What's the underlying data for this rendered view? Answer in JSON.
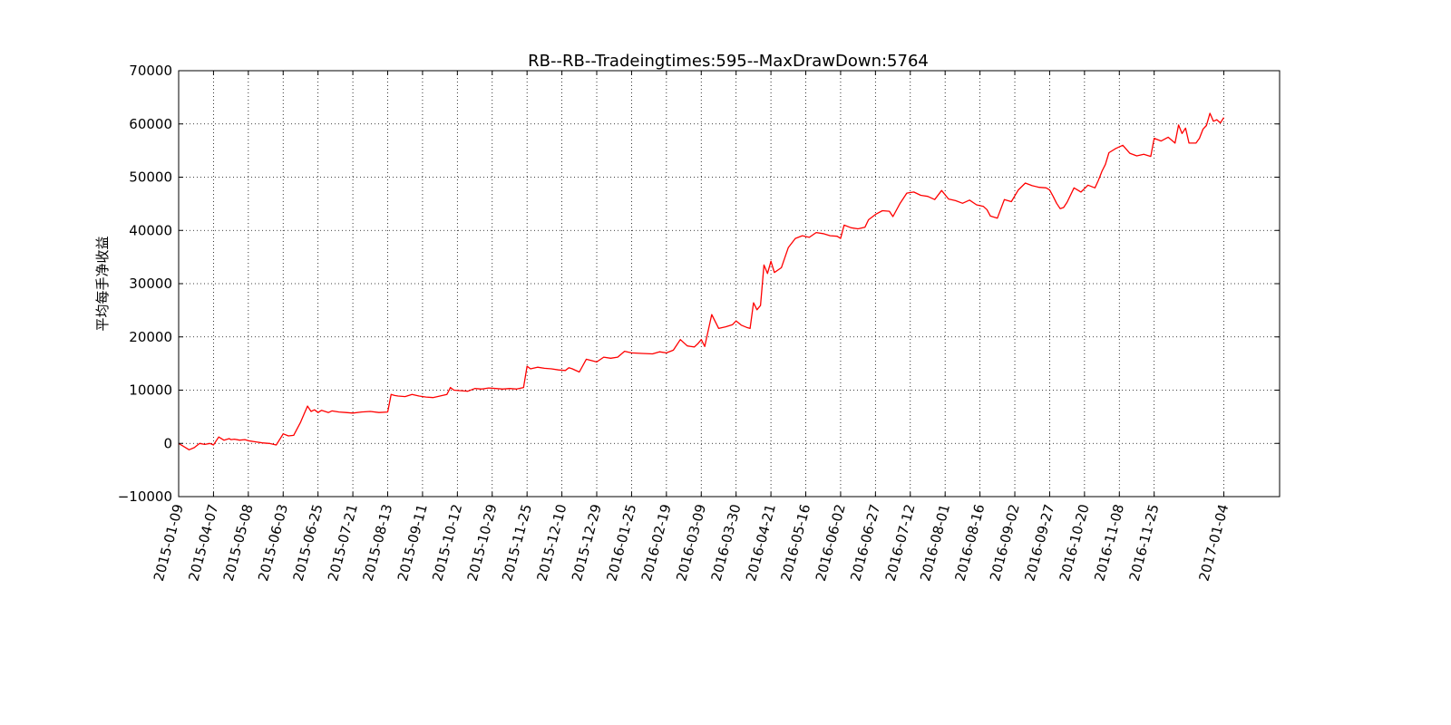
{
  "chart_data": {
    "type": "line",
    "title": "RB--RB--Tradeingtimes:595--MaxDrawDown:5764",
    "xlabel": "",
    "ylabel": "平均每手净收益",
    "ylim": [
      -10000,
      70000
    ],
    "yticks": [
      -10000,
      0,
      10000,
      20000,
      30000,
      40000,
      50000,
      60000,
      70000
    ],
    "ytick_labels": [
      "−10000",
      "0",
      "10000",
      "20000",
      "30000",
      "40000",
      "50000",
      "60000",
      "70000"
    ],
    "xtick_labels": [
      "2015-01-09",
      "2015-04-07",
      "2015-05-08",
      "2015-06-03",
      "2015-06-25",
      "2015-07-21",
      "2015-08-13",
      "2015-09-11",
      "2015-10-12",
      "2015-10-29",
      "2015-11-25",
      "2015-12-10",
      "2015-12-29",
      "2016-01-25",
      "2016-02-19",
      "2016-03-09",
      "2016-03-30",
      "2016-04-21",
      "2016-05-16",
      "2016-06-02",
      "2016-06-27",
      "2016-07-12",
      "2016-08-01",
      "2016-08-16",
      "2016-09-02",
      "2016-09-27",
      "2016-10-20",
      "2016-11-08",
      "2016-11-25",
      "2017-01-04"
    ],
    "xtick_positions": [
      0,
      20,
      40,
      60,
      80,
      100,
      120,
      140,
      160,
      180,
      200,
      220,
      240,
      260,
      280,
      300,
      320,
      340,
      360,
      380,
      400,
      420,
      440,
      460,
      480,
      500,
      520,
      540,
      560,
      600
    ],
    "xlim": [
      0,
      632
    ],
    "grid": true,
    "series": [
      {
        "color": "#ff0000",
        "x": [
          0,
          3,
          6,
          9,
          12,
          15,
          18,
          20,
          23,
          26,
          29,
          30,
          32,
          35,
          38,
          40,
          44,
          48,
          52,
          56,
          60,
          63,
          66,
          70,
          72,
          74,
          76,
          78,
          80,
          82,
          84,
          86,
          88,
          92,
          96,
          100,
          105,
          110,
          115,
          120,
          122,
          124,
          126,
          130,
          134,
          138,
          142,
          146,
          150,
          154,
          156,
          158,
          162,
          166,
          170,
          174,
          178,
          182,
          186,
          190,
          194,
          198,
          200,
          202,
          206,
          210,
          214,
          218,
          222,
          224,
          226,
          230,
          234,
          240,
          244,
          248,
          252,
          256,
          260,
          266,
          272,
          276,
          280,
          284,
          288,
          292,
          296,
          298,
          300,
          302,
          306,
          310,
          314,
          318,
          320,
          323,
          326,
          328,
          330,
          332,
          334,
          336,
          338,
          340,
          342,
          346,
          350,
          354,
          358,
          362,
          366,
          370,
          374,
          378,
          380,
          382,
          386,
          390,
          394,
          396,
          400,
          404,
          408,
          410,
          414,
          418,
          422,
          426,
          430,
          434,
          438,
          442,
          446,
          450,
          454,
          458,
          462,
          464,
          466,
          470,
          474,
          478,
          482,
          486,
          490,
          494,
          498,
          500,
          502,
          504,
          506,
          508,
          510,
          514,
          518,
          522,
          526,
          528,
          530,
          532,
          534,
          538,
          542,
          546,
          550,
          554,
          558,
          560,
          564,
          568,
          572,
          574,
          576,
          578,
          580,
          584,
          586,
          588,
          590,
          592,
          594,
          596,
          598,
          600
        ],
        "y": [
          0,
          -600,
          -1200,
          -800,
          0,
          -200,
          0,
          -300,
          1200,
          600,
          900,
          700,
          800,
          600,
          700,
          500,
          300,
          100,
          0,
          -300,
          1800,
          1400,
          1500,
          4000,
          5500,
          7000,
          6000,
          6300,
          5800,
          6200,
          6000,
          5800,
          6100,
          5900,
          5800,
          5700,
          5900,
          6000,
          5800,
          5900,
          9200,
          9000,
          8900,
          8800,
          9200,
          8900,
          8700,
          8600,
          8900,
          9200,
          10500,
          10000,
          9900,
          9800,
          10300,
          10200,
          10400,
          10300,
          10200,
          10300,
          10200,
          10500,
          14500,
          14000,
          14300,
          14100,
          14000,
          13800,
          13700,
          14200,
          14000,
          13400,
          15800,
          15300,
          16200,
          16000,
          16200,
          17300,
          17000,
          16900,
          16800,
          17200,
          17000,
          17500,
          19500,
          18300,
          18100,
          18700,
          19500,
          18200,
          24200,
          21600,
          21900,
          22300,
          23000,
          22200,
          21800,
          21600,
          26400,
          25100,
          25900,
          33500,
          31900,
          34200,
          32100,
          33000,
          36800,
          38500,
          39000,
          38700,
          39600,
          39400,
          39000,
          38900,
          38500,
          41000,
          40500,
          40300,
          40600,
          42000,
          43000,
          43700,
          43600,
          42600,
          45000,
          47000,
          47200,
          46600,
          46400,
          45800,
          47500,
          45900,
          45600,
          45100,
          45700,
          44800,
          44500,
          43900,
          42700,
          42300,
          45800,
          45400,
          47600,
          48900,
          48400,
          48100,
          48000,
          47600,
          46400,
          45100,
          44100,
          44300,
          45300,
          48000,
          47200,
          48500,
          48000,
          49400,
          51100,
          52400,
          54600,
          55400,
          56000,
          54500,
          54000,
          54300,
          53900,
          57300,
          56800,
          57500,
          56400,
          59800,
          58200,
          59200,
          56400,
          56400,
          57300,
          59000,
          59700,
          62000,
          60500,
          60800,
          60200,
          61200
        ]
      }
    ]
  }
}
